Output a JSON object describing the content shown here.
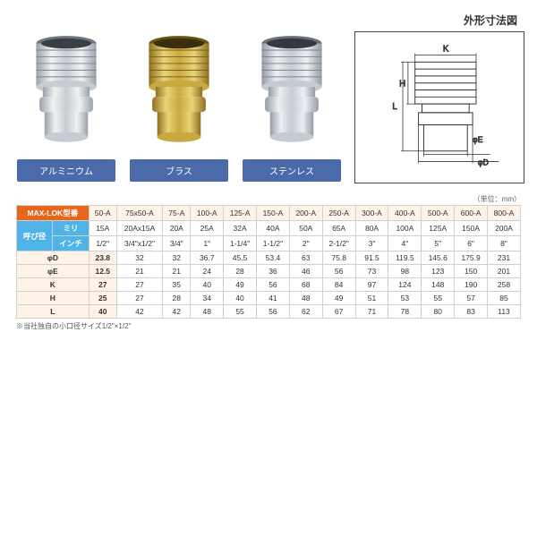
{
  "diagramTitle": "外形寸法図",
  "unitNote": "（単位：mm）",
  "footnote": "※当社独自の小口径サイズ1/2\"×1/2\"",
  "materials": [
    {
      "name": "アルミニウム",
      "bg": "#4a6aa9"
    },
    {
      "name": "ブラス",
      "bg": "#4a6aa9"
    },
    {
      "name": "ステンレス",
      "bg": "#4a6aa9"
    }
  ],
  "modelHeader": "MAX-LOK型番",
  "sizeHeader": "呼び径",
  "sizeSubMm": "ミリ",
  "sizeSubIn": "インチ",
  "dimLabels": [
    "φD",
    "φE",
    "K",
    "H",
    "L"
  ],
  "diagramDims": [
    "K",
    "L",
    "H",
    "φE",
    "φD"
  ],
  "models": [
    "50-A",
    "75x50-A",
    "75-A",
    "100-A",
    "125-A",
    "150-A",
    "200-A",
    "250-A",
    "300-A",
    "400-A",
    "500-A",
    "600-A",
    "800-A"
  ],
  "sizes_mm": [
    "15A",
    "20Ax15A",
    "20A",
    "25A",
    "32A",
    "40A",
    "50A",
    "65A",
    "80A",
    "100A",
    "125A",
    "150A",
    "200A"
  ],
  "sizes_in": [
    "1/2\"",
    "3/4\"x1/2\"",
    "3/4\"",
    "1\"",
    "1-1/4\"",
    "1-1/2\"",
    "2\"",
    "2-1/2\"",
    "3\"",
    "4\"",
    "5\"",
    "6\"",
    "8\""
  ],
  "dims": {
    "phiD": [
      "23.8",
      "32",
      "32",
      "36.7",
      "45.5",
      "53.4",
      "63",
      "75.8",
      "91.5",
      "119.5",
      "145.6",
      "175.9",
      "231"
    ],
    "phiE": [
      "12.5",
      "21",
      "21",
      "24",
      "28",
      "36",
      "46",
      "56",
      "73",
      "98",
      "123",
      "150",
      "201"
    ],
    "K": [
      "27",
      "27",
      "35",
      "40",
      "49",
      "56",
      "68",
      "84",
      "97",
      "124",
      "148",
      "190",
      "258"
    ],
    "H": [
      "25",
      "27",
      "28",
      "34",
      "40",
      "41",
      "48",
      "49",
      "51",
      "53",
      "55",
      "57",
      "85"
    ],
    "L": [
      "40",
      "42",
      "42",
      "48",
      "55",
      "56",
      "62",
      "67",
      "71",
      "78",
      "80",
      "83",
      "113"
    ]
  },
  "fittingColors": {
    "aluminum": {
      "light": "#f0f1f3",
      "mid": "#c8ccd2",
      "dark": "#9aa1ab"
    },
    "brass": {
      "light": "#e8d377",
      "mid": "#c9a83f",
      "dark": "#8f7020"
    },
    "steel": {
      "light": "#eceff2",
      "mid": "#c4cbd2",
      "dark": "#949ca6"
    }
  }
}
